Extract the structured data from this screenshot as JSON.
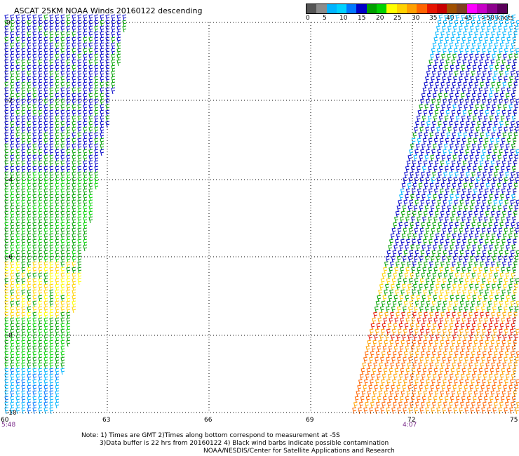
{
  "title": "ASCAT 25KM NOAA Winds 20160122 descending",
  "colorbar": {
    "colors": [
      "#555555",
      "#8c8c8c",
      "#00b4ff",
      "#00d2ff",
      "#0078ff",
      "#0000c8",
      "#00a000",
      "#00d200",
      "#ffff00",
      "#ffd200",
      "#ffa000",
      "#ff6400",
      "#e61400",
      "#c80000",
      "#a05000",
      "#804020",
      "#ff00ff",
      "#c800c8",
      "#8c008c",
      "#5a005a"
    ],
    "labels": [
      "0",
      "5",
      "10",
      "15",
      "20",
      "25",
      "30",
      "35",
      "40",
      "45",
      ">50 knots"
    ]
  },
  "axes": {
    "y_labels": [
      "0",
      "-2",
      "-4",
      "-6",
      "-8",
      "-10"
    ],
    "x_labels": [
      "60",
      "63",
      "66",
      "69",
      "72",
      "75"
    ]
  },
  "swath_times": [
    "5:48",
    "4:07"
  ],
  "notes": [
    "Note: 1) Times are GMT 2)Times along bottom correspond to measurement at -5S",
    "3)Data buffer is 22 hrs from 20160122 4) Black wind barbs indicate possible contamination",
    "NOAA/NESDIS/Center for Satellite Applications and Research"
  ]
}
